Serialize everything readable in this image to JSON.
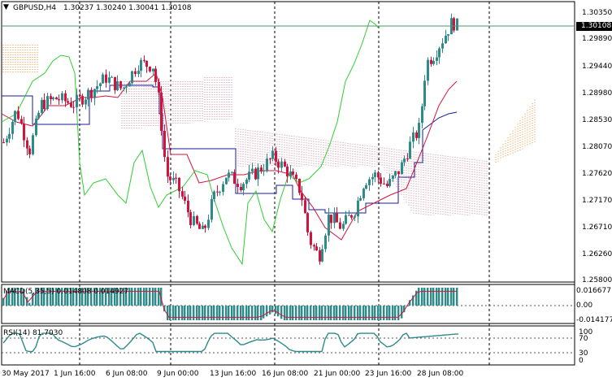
{
  "window": {
    "symbol_title": "GBPUSD,H4",
    "ohlc": "1.30237 1.30240 1.30041 1.30108",
    "collapse_glyph": "▼"
  },
  "main_chart": {
    "price_ticks": [
      "1.30350",
      "1.29890",
      "1.29440",
      "1.28980",
      "1.28530",
      "1.28070",
      "1.27620",
      "1.27170",
      "1.26710",
      "1.26260",
      "1.25800"
    ],
    "current_price": "1.30108",
    "colors": {
      "bull_candle": "#2e8b8b",
      "bear_candle": "#d2143c",
      "tenkan": "#d2143c",
      "kijun": "#1a1aa0",
      "chikou": "#32cd32",
      "kumo_bull": "#e8903c",
      "kumo_bear": "#c88ca0",
      "current_price_line": "#4a9a6a"
    }
  },
  "macd": {
    "label": "MACD(5,35,5) 0.014808 0.014927",
    "ticks": [
      "0.016677",
      "0.00",
      "-0.014177"
    ]
  },
  "rsi": {
    "label": "RSI(14) 81.7030",
    "ticks": [
      "100",
      "70",
      "30",
      "0"
    ]
  },
  "time_axis": {
    "labels": [
      "30 May 2017",
      "1 Jun 16:00",
      "6 Jun 08:00",
      "9 Jun 00:00",
      "13 Jun 16:00",
      "16 Jun 08:00",
      "21 Jun 00:00",
      "23 Jun 16:00",
      "28 Jun 08:00"
    ]
  }
}
